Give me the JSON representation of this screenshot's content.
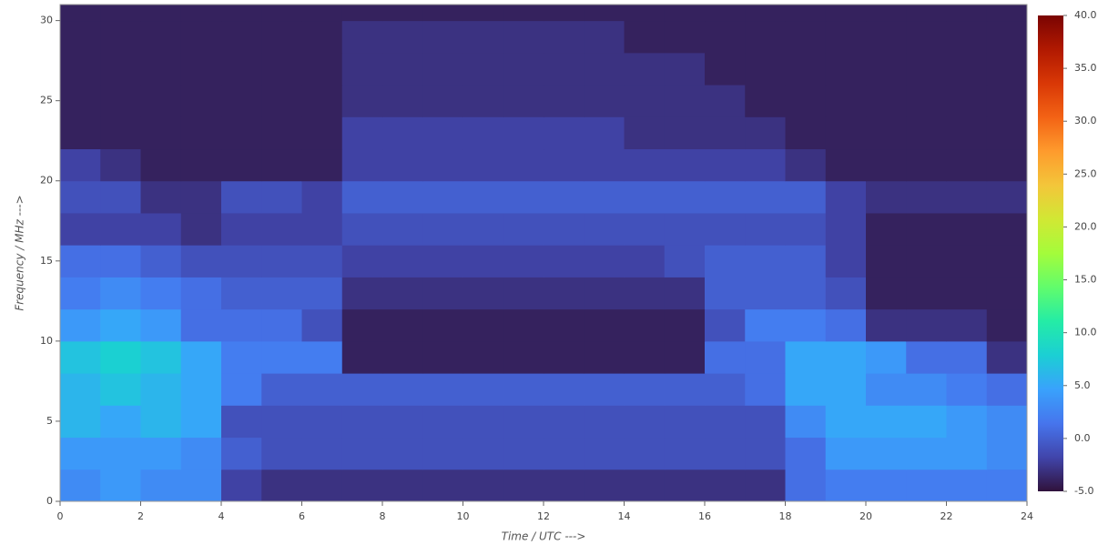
{
  "chart_data": {
    "type": "heatmap",
    "xlabel": "Time / UTC --->",
    "ylabel": "Frequency / MHz --->",
    "x_bins": [
      0,
      1,
      2,
      3,
      4,
      5,
      6,
      7,
      8,
      9,
      10,
      11,
      12,
      13,
      14,
      15,
      16,
      17,
      18,
      19,
      20,
      21,
      22,
      23,
      24
    ],
    "y_bins": [
      0,
      2,
      4,
      6,
      8,
      10,
      12,
      14,
      16,
      18,
      20,
      22,
      24,
      26,
      28,
      30,
      31
    ],
    "xlim": [
      0,
      24
    ],
    "xticks": [
      0,
      2,
      4,
      6,
      8,
      10,
      12,
      14,
      16,
      18,
      20,
      22,
      24
    ],
    "ylim": [
      0,
      31
    ],
    "yticks": [
      0,
      5,
      10,
      15,
      20,
      25,
      30
    ],
    "zlim": [
      -5,
      40
    ],
    "zticks": [
      {
        "value": -5,
        "label": "-5.0"
      },
      {
        "value": 0,
        "label": "0.0"
      },
      {
        "value": 5,
        "label": "5.0"
      },
      {
        "value": 10,
        "label": "10.0"
      },
      {
        "value": 15,
        "label": "15.0"
      },
      {
        "value": 20,
        "label": "20.0"
      },
      {
        "value": 25,
        "label": "25.0"
      },
      {
        "value": 30,
        "label": "30.0"
      },
      {
        "value": 35,
        "label": "35.0"
      },
      {
        "value": 40,
        "label": "40.0"
      }
    ],
    "colorscale": [
      "#30123b",
      "#4145ab",
      "#4675ed",
      "#39a2fc",
      "#1bcfd4",
      "#24eca6",
      "#61fc6c",
      "#a4fc3b",
      "#d1e834",
      "#f3c63a",
      "#fe9b2d",
      "#f36315",
      "#d93806",
      "#b11901",
      "#7a0402"
    ],
    "values": [
      [
        3,
        4,
        3,
        3,
        -2,
        -3,
        -3,
        -3,
        -3,
        -3,
        -3,
        -3,
        -3,
        -3,
        -3,
        -3,
        -3,
        -3,
        1,
        2,
        2,
        2,
        2,
        2
      ],
      [
        4,
        4,
        4,
        3,
        0,
        -1,
        -1,
        -1,
        -1,
        -1,
        -1,
        -1,
        -1,
        -1,
        -1,
        -1,
        -1,
        -1,
        1,
        4,
        4,
        4,
        4,
        3
      ],
      [
        6,
        5,
        6,
        5,
        -1,
        -1,
        -1,
        -1,
        -1,
        -1,
        -1,
        -1,
        -1,
        -1,
        -1,
        -1,
        -1,
        -1,
        3,
        5,
        5,
        5,
        4,
        3
      ],
      [
        6,
        7,
        6,
        5,
        2,
        0,
        0,
        0,
        0,
        0,
        0,
        0,
        0,
        0,
        0,
        0,
        0,
        1,
        5,
        5,
        3,
        3,
        2,
        1
      ],
      [
        7,
        8,
        7,
        5,
        2,
        2,
        2,
        -4,
        -4,
        -4,
        -4,
        -4,
        -4,
        -4,
        -4,
        -4,
        1,
        1,
        5,
        5,
        4,
        1,
        1,
        -3
      ],
      [
        4,
        5,
        4,
        1,
        1,
        1,
        -1,
        -4,
        -4,
        -4,
        -4,
        -4,
        -4,
        -4,
        -4,
        -4,
        -1,
        2,
        2,
        1,
        -3,
        -3,
        -3,
        -4
      ],
      [
        2,
        3,
        2,
        1,
        0,
        0,
        0,
        -3,
        -3,
        -3,
        -3,
        -3,
        -3,
        -3,
        -3,
        -3,
        0,
        0,
        0,
        -1,
        -4,
        -4,
        -4,
        -4
      ],
      [
        1,
        1,
        0,
        -1,
        -1,
        -1,
        -1,
        -2,
        -2,
        -2,
        -2,
        -2,
        -2,
        -2,
        -2,
        -1,
        0,
        0,
        0,
        -2,
        -4,
        -4,
        -4,
        -4
      ],
      [
        -2,
        -2,
        -2,
        -3,
        -2,
        -2,
        -2,
        -1,
        -1,
        -1,
        -1,
        -1,
        -1,
        -1,
        -1,
        -1,
        -1,
        -1,
        -1,
        -2,
        -4,
        -4,
        -4,
        -4
      ],
      [
        -1,
        -1,
        -3,
        -3,
        -1,
        -1,
        -2,
        0,
        0,
        0,
        0,
        0,
        0,
        0,
        0,
        0,
        0,
        0,
        0,
        -2,
        -3,
        -3,
        -3,
        -3
      ],
      [
        -2,
        -3,
        -4,
        -4,
        -4,
        -4,
        -4,
        -2,
        -2,
        -2,
        -2,
        -2,
        -2,
        -2,
        -2,
        -2,
        -2,
        -2,
        -3,
        -4,
        -4,
        -4,
        -4,
        -4
      ],
      [
        -4,
        -4,
        -4,
        -4,
        -4,
        -4,
        -4,
        -2,
        -2,
        -2,
        -2,
        -2,
        -2,
        -2,
        -3,
        -3,
        -3,
        -3,
        -4,
        -4,
        -4,
        -4,
        -4,
        -4
      ],
      [
        -4,
        -4,
        -4,
        -4,
        -4,
        -4,
        -4,
        -3,
        -3,
        -3,
        -3,
        -3,
        -3,
        -3,
        -3,
        -3,
        -3,
        -4,
        -4,
        -4,
        -4,
        -4,
        -4,
        -4
      ],
      [
        -4,
        -4,
        -4,
        -4,
        -4,
        -4,
        -4,
        -3,
        -3,
        -3,
        -3,
        -3,
        -3,
        -3,
        -3,
        -3,
        -4,
        -4,
        -4,
        -4,
        -4,
        -4,
        -4,
        -4
      ],
      [
        -4,
        -4,
        -4,
        -4,
        -4,
        -4,
        -4,
        -3,
        -3,
        -3,
        -3,
        -3,
        -3,
        -3,
        -4,
        -4,
        -4,
        -4,
        -4,
        -4,
        -4,
        -4,
        -4,
        -4
      ],
      [
        -4,
        -4,
        -4,
        -4,
        -4,
        -4,
        -4,
        -4,
        -4,
        -4,
        -4,
        -4,
        -4,
        -4,
        -4,
        -4,
        -4,
        -4,
        -4,
        -4,
        -4,
        -4,
        -4,
        -4
      ]
    ]
  }
}
